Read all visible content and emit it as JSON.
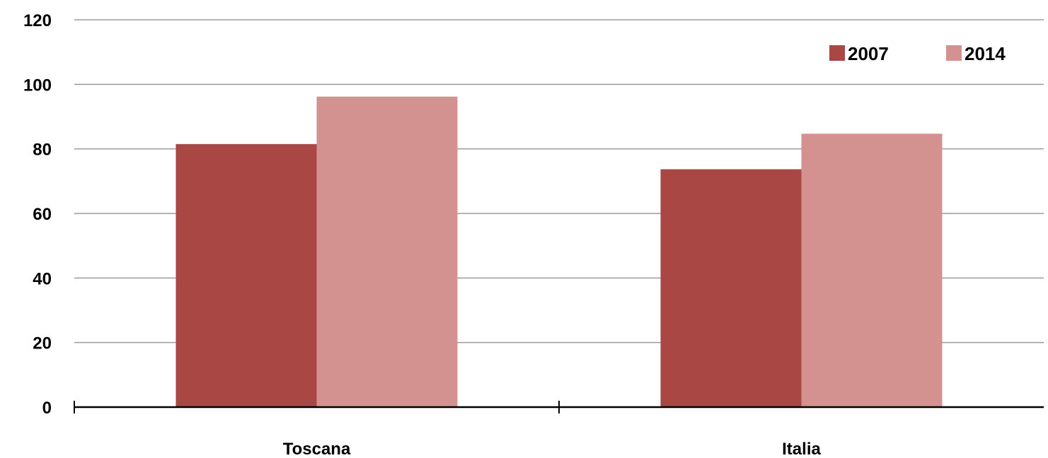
{
  "chart_data": {
    "type": "bar",
    "title": "",
    "xlabel": "",
    "ylabel": "",
    "categories": [
      "Toscana",
      "Italia"
    ],
    "series": [
      {
        "name": "2007",
        "values": [
          81.5,
          73.7
        ],
        "color": "#A94745"
      },
      {
        "name": "2014",
        "values": [
          96.2,
          84.7
        ],
        "color": "#D39190"
      }
    ],
    "ylim": [
      0,
      120
    ],
    "yticks": [
      "0",
      "20",
      "40",
      "60",
      "80",
      "100",
      "120"
    ],
    "grid": true,
    "gridColor": "#9A9A9A",
    "axisColor": "#000000",
    "legend": {
      "position": "top-right"
    }
  }
}
